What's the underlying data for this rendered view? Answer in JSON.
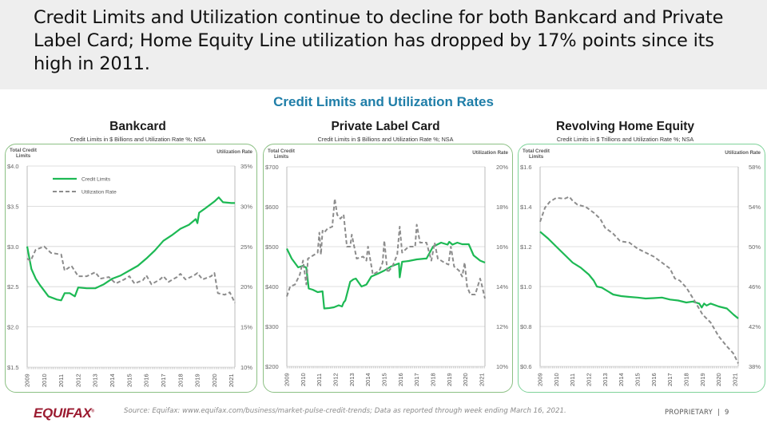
{
  "slide": {
    "headline": "Credit Limits and Utilization continue to decline for both Bankcard and Private Label Card; Home Equity Line utilization has dropped by 17% points since its high in 2011.",
    "section_title": "Credit Limits and Utilization Rates",
    "footer": {
      "logo": "EQUIFAX",
      "logo_mark": "®",
      "source": "Source: Equifax: www.equifax.com/business/market-pulse-credit-trends; Data as reported through week ending March 16, 2021.",
      "proprietary": "PROPRIETARY",
      "separator": "|",
      "page_number": "9"
    }
  },
  "colors": {
    "credit_limits": "#1db954",
    "utilization": "#8c8c8c",
    "section_title": "#1f7ea8",
    "brand": "#9b1b30"
  },
  "chart_data": [
    {
      "type": "line",
      "title": "Bankcard",
      "subtitle": "Credit Limits in $ Billions and Utilization Rate %; NSA",
      "ylabel_left": "Total Credit Limits",
      "ylabel_right": "Utilization Rate",
      "xlabel": "",
      "x_ticks": [
        "2009",
        "2010",
        "2011",
        "2012",
        "2013",
        "2014",
        "2015",
        "2016",
        "2017",
        "2018",
        "2019",
        "2020",
        "2021"
      ],
      "xlim": [
        2009,
        2021.2
      ],
      "ylim_left": [
        1.5,
        4.0
      ],
      "ylim_right": [
        10,
        35
      ],
      "left_ticks": [
        "$1.5",
        "$2.0",
        "$2.5",
        "$3.0",
        "$3.5",
        "$4.0"
      ],
      "right_ticks": [
        "10%",
        "15%",
        "20%",
        "25%",
        "30%",
        "35%"
      ],
      "grid": true,
      "legend": {
        "placement": "top-left",
        "entries": [
          "Credit Limits",
          "Utilization Rate"
        ]
      },
      "series": [
        {
          "name": "Credit Limits",
          "axis": "left",
          "style": "solid",
          "x": [
            2009.0,
            2009.25,
            2009.5,
            2009.75,
            2010.0,
            2010.25,
            2010.5,
            2010.75,
            2011.0,
            2011.2,
            2011.5,
            2011.8,
            2012.0,
            2012.5,
            2013.0,
            2013.5,
            2014.0,
            2014.5,
            2015.0,
            2015.5,
            2016.0,
            2016.5,
            2017.0,
            2017.5,
            2018.0,
            2018.5,
            2018.9,
            2019.0,
            2019.1,
            2019.5,
            2020.0,
            2020.25,
            2020.5,
            2021.0,
            2021.2
          ],
          "values": [
            3.0,
            2.72,
            2.6,
            2.52,
            2.45,
            2.38,
            2.36,
            2.34,
            2.33,
            2.42,
            2.42,
            2.38,
            2.49,
            2.48,
            2.48,
            2.53,
            2.6,
            2.64,
            2.7,
            2.76,
            2.85,
            2.95,
            3.07,
            3.14,
            3.22,
            3.27,
            3.34,
            3.29,
            3.42,
            3.48,
            3.56,
            3.61,
            3.55,
            3.54,
            3.54
          ]
        },
        {
          "name": "Utilization Rate",
          "axis": "right",
          "style": "dashed",
          "x": [
            2009.0,
            2009.2,
            2009.5,
            2010.0,
            2010.4,
            2011.0,
            2011.2,
            2011.6,
            2012.0,
            2012.5,
            2013.0,
            2013.3,
            2013.8,
            2014.2,
            2014.7,
            2015.0,
            2015.3,
            2015.8,
            2016.0,
            2016.3,
            2016.8,
            2017.0,
            2017.3,
            2017.8,
            2018.0,
            2018.3,
            2018.8,
            2019.0,
            2019.3,
            2019.8,
            2020.0,
            2020.2,
            2020.6,
            2020.9,
            2021.2
          ],
          "values": [
            23.5,
            23.2,
            24.6,
            25.0,
            24.2,
            24.0,
            22.0,
            22.6,
            21.3,
            21.3,
            21.8,
            21.0,
            21.2,
            20.4,
            20.9,
            21.3,
            20.4,
            20.8,
            21.4,
            20.3,
            20.9,
            21.3,
            20.6,
            21.2,
            21.6,
            20.9,
            21.4,
            21.7,
            20.9,
            21.3,
            21.7,
            19.2,
            19.0,
            19.3,
            18.0
          ]
        }
      ]
    },
    {
      "type": "line",
      "title": "Private Label Card",
      "subtitle": "Credit Limits in $ Billions and Utilization Rate %; NSA",
      "ylabel_left": "Total Credit Limits",
      "ylabel_right": "Utilization Rate",
      "xlabel": "",
      "x_ticks": [
        "2009",
        "2010",
        "2011",
        "2012",
        "2013",
        "2014",
        "2015",
        "2016",
        "2017",
        "2018",
        "2019",
        "2020",
        "2021"
      ],
      "xlim": [
        2009,
        2021.2
      ],
      "ylim_left": [
        200,
        700
      ],
      "ylim_right": [
        10,
        20
      ],
      "left_ticks": [
        "$200",
        "$300",
        "$400",
        "$500",
        "$600",
        "$700"
      ],
      "right_ticks": [
        "10%",
        "12%",
        "14%",
        "16%",
        "18%",
        "20%"
      ],
      "grid": true,
      "legend": null,
      "series": [
        {
          "name": "Credit Limits",
          "axis": "left",
          "style": "solid",
          "x": [
            2009.0,
            2009.3,
            2009.7,
            2010.0,
            2010.2,
            2010.35,
            2010.6,
            2010.9,
            2011.2,
            2011.3,
            2011.6,
            2011.9,
            2012.2,
            2012.4,
            2012.5,
            2012.6,
            2012.9,
            2013.1,
            2013.25,
            2013.6,
            2013.9,
            2014.2,
            2014.6,
            2015.0,
            2015.4,
            2015.9,
            2015.95,
            2016.1,
            2016.5,
            2017.0,
            2017.5,
            2017.6,
            2018.0,
            2018.5,
            2018.9,
            2019.0,
            2019.2,
            2019.5,
            2019.8,
            2020.2,
            2020.5,
            2020.9,
            2021.2
          ],
          "values": [
            495,
            470,
            448,
            452,
            447,
            395,
            392,
            386,
            388,
            345,
            346,
            348,
            353,
            350,
            360,
            365,
            412,
            418,
            420,
            400,
            405,
            425,
            432,
            440,
            450,
            458,
            423,
            462,
            464,
            468,
            470,
            470,
            500,
            510,
            505,
            512,
            505,
            510,
            506,
            506,
            478,
            465,
            460
          ]
        },
        {
          "name": "Utilization Rate",
          "axis": "right",
          "style": "dashed",
          "x": [
            2009.0,
            2009.2,
            2009.5,
            2009.8,
            2010.0,
            2010.2,
            2010.3,
            2010.5,
            2010.9,
            2011.0,
            2011.1,
            2011.2,
            2011.3,
            2011.5,
            2011.8,
            2011.95,
            2012.1,
            2012.3,
            2012.5,
            2012.7,
            2012.9,
            2013.0,
            2013.3,
            2013.7,
            2013.9,
            2014.0,
            2014.3,
            2014.7,
            2014.9,
            2015.0,
            2015.2,
            2015.5,
            2015.8,
            2015.95,
            2016.1,
            2016.5,
            2016.9,
            2017.0,
            2017.2,
            2017.6,
            2017.9,
            2018.1,
            2018.3,
            2018.7,
            2018.95,
            2019.1,
            2019.3,
            2019.6,
            2019.8,
            2019.95,
            2020.1,
            2020.3,
            2020.6,
            2020.9,
            2021.0,
            2021.2
          ],
          "values": [
            13.5,
            14.0,
            14.1,
            14.6,
            15.3,
            14.1,
            15.4,
            15.5,
            15.7,
            16.7,
            15.6,
            16.8,
            16.7,
            16.9,
            17.0,
            18.4,
            17.6,
            17.4,
            17.6,
            16.0,
            16.0,
            16.6,
            15.4,
            15.5,
            15.3,
            16.0,
            14.6,
            14.8,
            15.2,
            16.3,
            14.7,
            15.0,
            15.6,
            17.0,
            15.7,
            16.0,
            16.0,
            17.1,
            16.2,
            16.2,
            15.3,
            16.2,
            15.4,
            15.2,
            15.1,
            16.0,
            15.0,
            14.8,
            14.5,
            15.2,
            14.0,
            13.6,
            13.6,
            14.4,
            14.1,
            13.4
          ]
        }
      ]
    },
    {
      "type": "line",
      "title": "Revolving Home Equity",
      "subtitle": "Credit Limits in $ Trillions and Utilization Rate %; NSA",
      "ylabel_left": "Total Credit Limits",
      "ylabel_right": "Utilization Rate",
      "xlabel": "",
      "x_ticks": [
        "2009",
        "2010",
        "2011",
        "2012",
        "2013",
        "2014",
        "2015",
        "2016",
        "2017",
        "2018",
        "2019",
        "2020",
        "2021"
      ],
      "xlim": [
        2009,
        2021.2
      ],
      "ylim_left": [
        0.6,
        1.6
      ],
      "ylim_right": [
        38,
        58
      ],
      "left_ticks": [
        "$0.6",
        "$0.8",
        "$1.0",
        "$1.2",
        "$1.4",
        "$1.6"
      ],
      "right_ticks": [
        "38%",
        "42%",
        "46%",
        "50%",
        "54%",
        "58%"
      ],
      "grid": true,
      "legend": null,
      "series": [
        {
          "name": "Credit Limits",
          "axis": "left",
          "style": "solid",
          "x": [
            2009.0,
            2009.5,
            2010.0,
            2010.5,
            2011.0,
            2011.5,
            2012.0,
            2012.3,
            2012.5,
            2012.8,
            2013.0,
            2013.5,
            2014.0,
            2014.5,
            2015.0,
            2015.5,
            2016.0,
            2016.5,
            2017.0,
            2017.5,
            2018.0,
            2018.4,
            2018.8,
            2018.95,
            2019.1,
            2019.25,
            2019.5,
            2020.0,
            2020.5,
            2020.9,
            2021.2
          ],
          "values": [
            1.275,
            1.24,
            1.2,
            1.16,
            1.12,
            1.095,
            1.06,
            1.03,
            1.0,
            0.995,
            0.985,
            0.96,
            0.952,
            0.948,
            0.945,
            0.94,
            0.942,
            0.945,
            0.935,
            0.93,
            0.92,
            0.925,
            0.915,
            0.895,
            0.915,
            0.905,
            0.915,
            0.9,
            0.89,
            0.86,
            0.84
          ]
        },
        {
          "name": "Utilization Rate",
          "axis": "right",
          "style": "dashed",
          "x": [
            2009.0,
            2009.3,
            2009.6,
            2010.0,
            2010.5,
            2010.8,
            2011.0,
            2011.3,
            2011.8,
            2012.3,
            2012.7,
            2013.0,
            2013.5,
            2013.9,
            2014.1,
            2014.5,
            2015.0,
            2015.5,
            2016.0,
            2016.5,
            2017.0,
            2017.3,
            2017.6,
            2018.0,
            2018.5,
            2019.0,
            2019.5,
            2020.0,
            2020.5,
            2020.9,
            2021.2
          ],
          "values": [
            52.5,
            53.9,
            54.5,
            54.9,
            54.8,
            55.0,
            54.6,
            54.2,
            54.0,
            53.4,
            52.8,
            51.9,
            51.3,
            50.6,
            50.5,
            50.4,
            49.8,
            49.4,
            49.0,
            48.4,
            47.8,
            46.8,
            46.6,
            45.9,
            44.6,
            43.2,
            42.4,
            41.0,
            40.0,
            39.3,
            38.3
          ]
        }
      ]
    }
  ]
}
